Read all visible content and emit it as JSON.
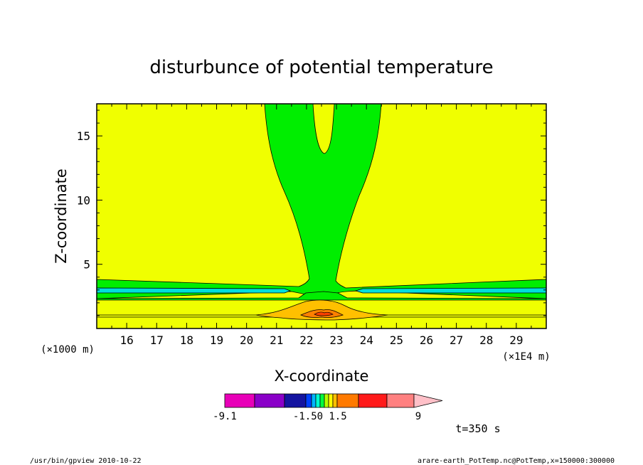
{
  "chart_data": {
    "type": "heatmap",
    "title": "disturbunce of potential temperature",
    "xlabel": "X-coordinate",
    "ylabel": "Z-coordinate",
    "x_unit_label": "(×1E4 m)",
    "y_unit_label": "(×1000 m)",
    "x_ticks": [
      "16",
      "17",
      "18",
      "19",
      "20",
      "21",
      "22",
      "23",
      "24",
      "25",
      "26",
      "27",
      "28",
      "29"
    ],
    "y_ticks": [
      "5",
      "10",
      "15"
    ],
    "xlim": [
      15,
      30
    ],
    "ylim": [
      0,
      17.5
    ],
    "colorbar": {
      "labels": [
        "-9.1",
        "-1.50",
        "1.5",
        "9"
      ],
      "colors": [
        "#e800b8",
        "#8a00c8",
        "#1414a0",
        "#0040ff",
        "#00b4ff",
        "#00ffd0",
        "#00ff40",
        "#b4ff00",
        "#ffff00",
        "#ffc000",
        "#ff7a00",
        "#ff1a1a",
        "#ff8080",
        "#ffc0c8"
      ]
    },
    "colors": {
      "background_field": "#ffff00",
      "green_band": "#00ff00",
      "cyan_band": "#00e0e0",
      "warm_core": "#ffa000"
    },
    "time_label": "t=350 s",
    "footer_left": "/usr/bin/gpview   2010-10-22",
    "footer_right": "arare-earth_PotTemp.nc@PotTemp,x=150000:300000"
  }
}
